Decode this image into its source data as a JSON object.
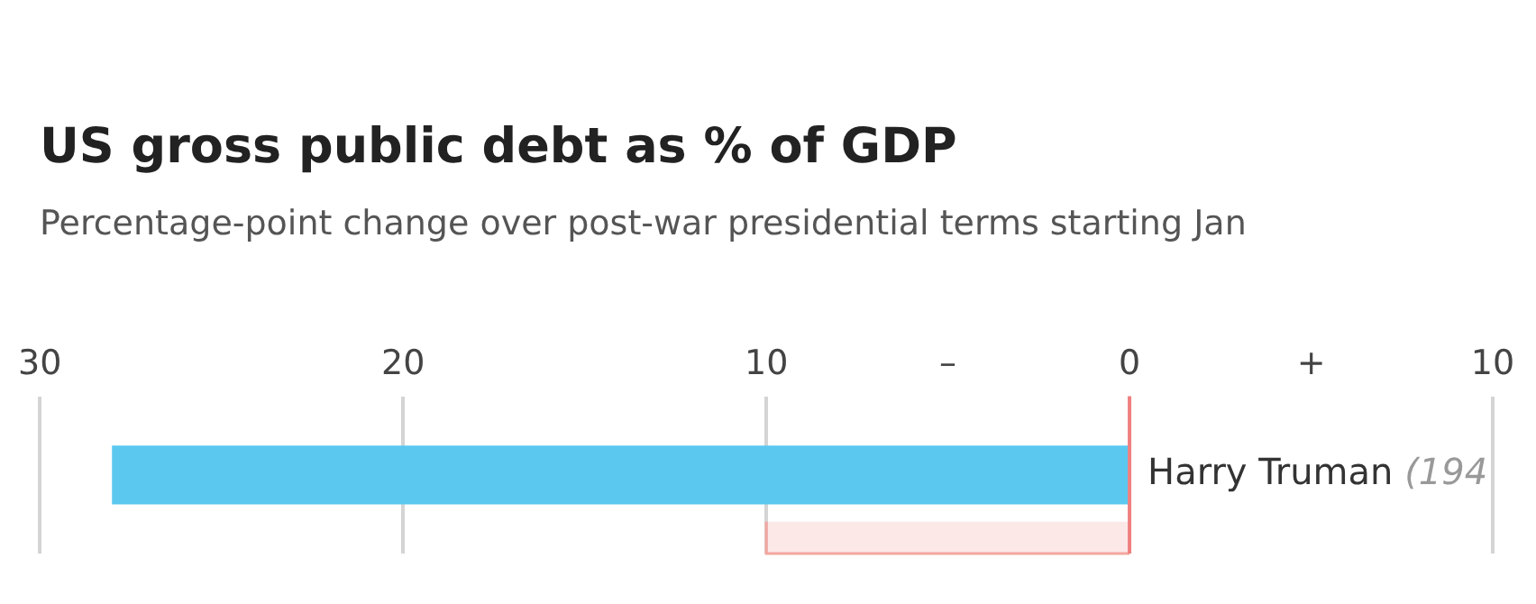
{
  "chart_data": {
    "type": "bar",
    "orientation": "horizontal",
    "title": "US gross public debt as % of GDP",
    "subtitle": "Percentage-point change over post-war presidential terms starting Jan",
    "categories": [
      "Harry Truman (194"
    ],
    "values": [
      -28
    ],
    "color": "#5bc8f0",
    "xlim": [
      -31,
      10
    ],
    "xticks": [
      {
        "value": -30,
        "label": "30"
      },
      {
        "value": -20,
        "label": "20"
      },
      {
        "value": -10,
        "label": "10"
      },
      {
        "value": -5,
        "label": "–"
      },
      0,
      {
        "value": 5,
        "label": "+"
      },
      10
    ],
    "grid": "x",
    "ref_lines": [
      {
        "axis": "x",
        "value": 0,
        "color": "#f08080"
      }
    ],
    "bands": [
      {
        "axis": "x",
        "from": -10,
        "to": 0,
        "color": "#f4a6a0"
      }
    ]
  }
}
